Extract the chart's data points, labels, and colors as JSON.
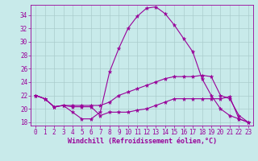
{
  "xlabel": "Windchill (Refroidissement éolien,°C)",
  "background_color": "#c8eaea",
  "line_color": "#990099",
  "grid_color": "#aacccc",
  "x_ticks": [
    0,
    1,
    2,
    3,
    4,
    5,
    6,
    7,
    8,
    9,
    10,
    11,
    12,
    13,
    14,
    15,
    16,
    17,
    18,
    19,
    20,
    21,
    22,
    23
  ],
  "y_ticks": [
    18,
    20,
    22,
    24,
    26,
    28,
    30,
    32,
    34
  ],
  "xlim": [
    -0.5,
    23.5
  ],
  "ylim": [
    17.5,
    35.5
  ],
  "series1": [
    22.0,
    21.5,
    20.3,
    20.5,
    19.5,
    18.5,
    18.5,
    19.5,
    25.5,
    29.0,
    32.0,
    33.8,
    35.0,
    35.2,
    34.2,
    32.5,
    30.5,
    28.5,
    24.5,
    22.0,
    20.0,
    19.0,
    18.5,
    18.0
  ],
  "series2": [
    22.0,
    21.5,
    20.3,
    20.5,
    20.5,
    20.5,
    20.5,
    20.5,
    21.0,
    22.0,
    22.5,
    23.0,
    23.5,
    24.0,
    24.5,
    24.8,
    24.8,
    24.8,
    25.0,
    24.8,
    22.0,
    21.5,
    19.0,
    18.0
  ],
  "series3": [
    22.0,
    21.5,
    20.3,
    20.5,
    20.3,
    20.3,
    20.3,
    19.0,
    19.5,
    19.5,
    19.5,
    19.8,
    20.0,
    20.5,
    21.0,
    21.5,
    21.5,
    21.5,
    21.5,
    21.5,
    21.5,
    21.8,
    18.5,
    18.0
  ],
  "tick_fontsize": 5.5,
  "xlabel_fontsize": 6.0
}
